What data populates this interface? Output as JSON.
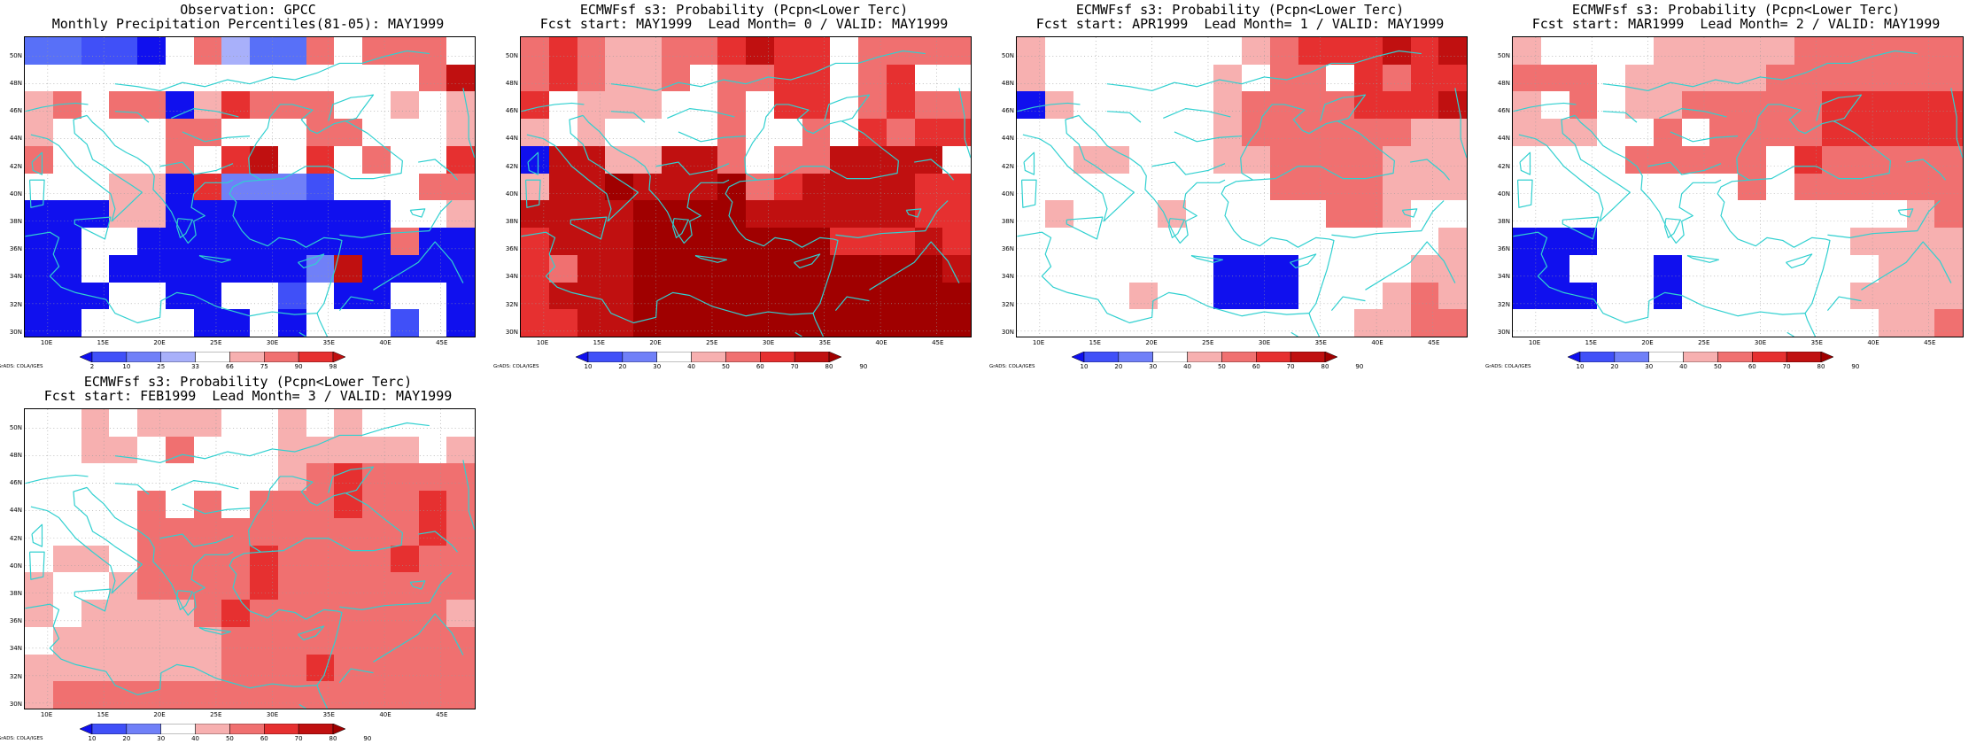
{
  "map": {
    "lat_labels": [
      "50N",
      "48N",
      "46N",
      "44N",
      "42N",
      "40N",
      "38N",
      "36N",
      "34N",
      "32N",
      "30N"
    ],
    "lon_labels": [
      "10E",
      "15E",
      "20E",
      "25E",
      "30E",
      "35E",
      "40E",
      "45E"
    ],
    "extent": {
      "lon_min": 8,
      "lon_max": 48,
      "lat_min": 29.6,
      "lat_max": 51.4
    },
    "grid_step_deg": 2.5,
    "dotted_grid": true,
    "coastline_color": "#30d0d0",
    "watermark": "GrADS: COLA/IGES"
  },
  "palette": {
    "blue": [
      "#1010ee",
      "#4050f8",
      "#7080f8",
      "#a8b0fa"
    ],
    "red": [
      "#f7b0b0",
      "#f07070",
      "#e63030",
      "#c01010",
      "#a00000"
    ],
    "white": "#ffffff"
  },
  "panels": [
    {
      "title_line1": "Observation: GPCC",
      "title_line2": "Monthly Precipitation Percentiles(81-05): MAY1999",
      "colorbar_labels": [
        "2",
        "10",
        "25",
        "33",
        "66",
        "75",
        "90",
        "98"
      ],
      "colorbar_colors": [
        "#1010ee",
        "#4050f8",
        "#7080f8",
        "#a8b0fa",
        "#ffffff",
        "#f7b0b0",
        "#f07070",
        "#e63030",
        "#c01010"
      ],
      "codes": [
        "ww2210b4wwb0bbb0",
        "00000000000000bd",
        "ab0bb1acbbb00a0a",
        "a0000bb000bb000a",
        "b0000b0cd0c0b00c",
        "000aa1c3332000bb",
        "111aa1111111100a",
        "1100111111111b11",
        "11011111113d1111",
        "1110011002011001",
        "1100001101000201"
      ]
    },
    {
      "title_line1": "ECMWFsf s3: Probability (Pcpn<Lower Terc)",
      "title_line2": "Fcst start: MAY1999  Lead Month= 0 / VALID: MAY1999",
      "colorbar_labels": [
        "10",
        "20",
        "30",
        "40",
        "50",
        "60",
        "70",
        "80",
        "90"
      ],
      "colorbar_colors": [
        "#1010ee",
        "#4050f8",
        "#7080f8",
        "#ffffff",
        "#f7b0b0",
        "#f07070",
        "#e63030",
        "#c01010",
        "#a00000"
      ],
      "codes": [
        "bcbaabbcdcc0bbbb",
        "bcbaab0bbcc0bc00",
        "c0aaa00b0cc0bcbb",
        "a0a0000b00b0cbcc",
        "1ddaaddb0bbdddd0",
        "addedddebcddddcc",
        "ddddeeeeddddddcc",
        "cdddeeeeeeecccdc",
        "cbddeeeeeeeeeeed",
        "cdddeeeeeeeeeeee",
        "ccddeeeeeeeeeeee"
      ]
    },
    {
      "title_line1": "ECMWFsf s3: Probability (Pcpn<Lower Terc)",
      "title_line2": "Fcst start: APR1999  Lead Month= 1 / VALID: MAY1999",
      "colorbar_labels": [
        "10",
        "20",
        "30",
        "40",
        "50",
        "60",
        "70",
        "80",
        "90"
      ],
      "colorbar_colors": [
        "#1010ee",
        "#4050f8",
        "#7080f8",
        "#ffffff",
        "#f7b0b0",
        "#f07070",
        "#e63030",
        "#c01010",
        "#a00000"
      ],
      "codes": [
        "a0000000abcccdcd",
        "a000000a0bb0cbcc",
        "1a00000abbbbcccd",
        "0000000abbbbbbaa",
        "00aa000aabbbbaaa",
        "000000000bbbbaaa",
        "0a000a00000bba00",
        "000000000000000a",
        "00000001110000aa",
        "0000a00111000aba",
        "000000000000aabb"
      ]
    },
    {
      "title_line1": "ECMWFsf s3: Probability (Pcpn<Lower Terc)",
      "title_line2": "Fcst start: MAR1999  Lead Month= 2 / VALID: MAY1999",
      "colorbar_labels": [
        "10",
        "20",
        "30",
        "40",
        "50",
        "60",
        "70",
        "80",
        "90"
      ],
      "colorbar_colors": [
        "#1010ee",
        "#4050f8",
        "#7080f8",
        "#ffffff",
        "#f7b0b0",
        "#f07070",
        "#e63030",
        "#c01010",
        "#a00000"
      ],
      "codes": [
        "a0000aaaaabbbbbb",
        "bbb0aaaaabbbbbbb",
        "a0b0aabbbbbccccc",
        "aaa00b0bbbbccccc",
        "0000bbbbb0cbbbbb",
        "00000000b0bbbbbb",
        "00000000000000ab",
        "111000000000aaaa",
        "1100010000000aaa",
        "111001000000aaaa",
        "0000000000000aab"
      ]
    },
    {
      "title_line1": "ECMWFsf s3: Probability (Pcpn<Lower Terc)",
      "title_line2": "Fcst start: FEB1999  Lead Month= 3 / VALID: MAY1999",
      "colorbar_labels": [
        "10",
        "20",
        "30",
        "40",
        "50",
        "60",
        "70",
        "80",
        "90"
      ],
      "colorbar_colors": [
        "#1010ee",
        "#4050f8",
        "#7080f8",
        "#ffffff",
        "#f7b0b0",
        "#f07070",
        "#e63030",
        "#c01010",
        "#a00000"
      ],
      "codes": [
        "00a0aaa00a0a0000",
        "00aa0b000aaaaa0a",
        "000000000abcbbbb",
        "0000b0b0bbbcbbcb",
        "0000bbbbbbbbbbcb",
        "0aa0bbbbcbbbbcbb",
        "a00abbbbcbbbbbbb",
        "a0aaaabcbbbbbbba",
        "0aaaaaabbbbbbbbb",
        "aaaaaaabbbcbbbbb",
        "abbbbbbbbbbbbbbb"
      ]
    }
  ]
}
